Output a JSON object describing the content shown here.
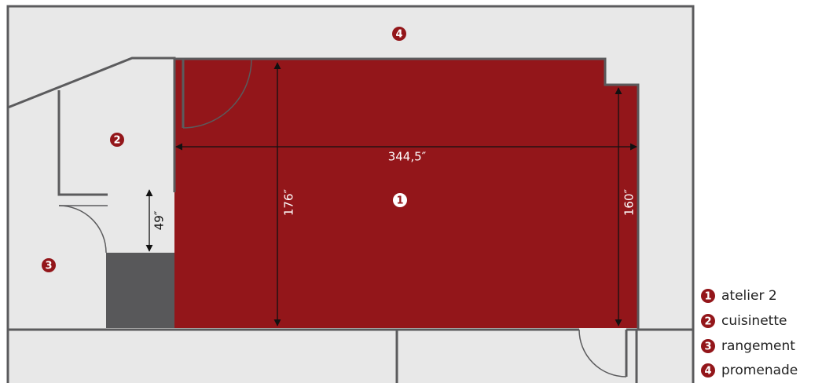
{
  "rooms": [
    {
      "number": "1",
      "name": "atelier 2"
    },
    {
      "number": "2",
      "name": "cuisinette"
    },
    {
      "number": "3",
      "name": "rangement"
    },
    {
      "number": "4",
      "name": "promenade"
    }
  ],
  "dimensions": {
    "width": "344,5″",
    "height_left": "176″",
    "height_right": "160″",
    "passage": "49″"
  }
}
